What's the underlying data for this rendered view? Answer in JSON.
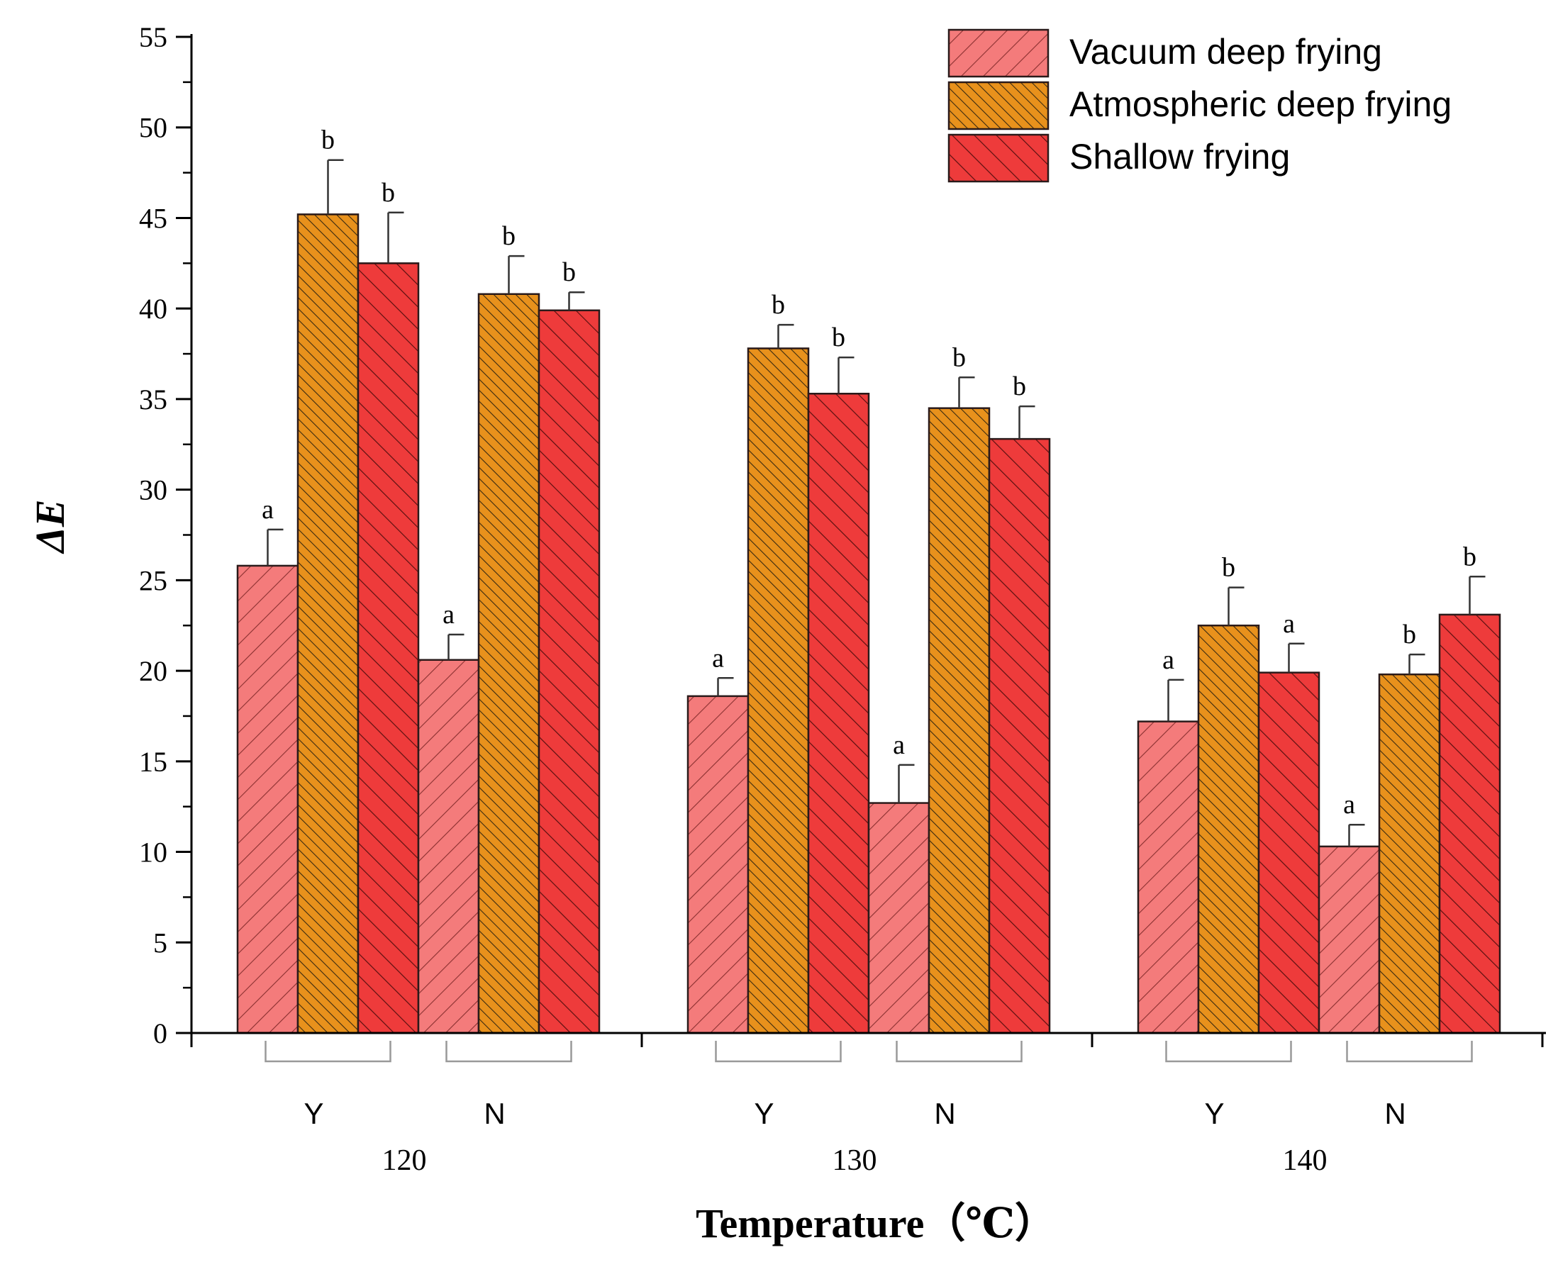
{
  "chart_data": {
    "type": "bar",
    "xlabel": "Temperature（℃）",
    "ylabel": "ΔE",
    "ylim": [
      0,
      55
    ],
    "yticks": [
      "0",
      "5",
      "10",
      "15",
      "20",
      "25",
      "30",
      "35",
      "40",
      "45",
      "50",
      "55"
    ],
    "legend_position": "top-right",
    "groups": [
      {
        "temperature": "120",
        "subgroups": [
          {
            "label": "Y",
            "bars": [
              {
                "series": "Vacuum deep frying",
                "value": 25.8,
                "error": 2.0,
                "letter": "a"
              },
              {
                "series": "Atmospheric deep frying",
                "value": 45.2,
                "error": 3.0,
                "letter": "b"
              },
              {
                "series": "Shallow frying",
                "value": 42.5,
                "error": 2.8,
                "letter": "b"
              }
            ]
          },
          {
            "label": "N",
            "bars": [
              {
                "series": "Vacuum deep frying",
                "value": 20.6,
                "error": 1.4,
                "letter": "a"
              },
              {
                "series": "Atmospheric deep frying",
                "value": 40.8,
                "error": 2.1,
                "letter": "b"
              },
              {
                "series": "Shallow frying",
                "value": 39.9,
                "error": 1.0,
                "letter": "b"
              }
            ]
          }
        ]
      },
      {
        "temperature": "130",
        "subgroups": [
          {
            "label": "Y",
            "bars": [
              {
                "series": "Vacuum deep frying",
                "value": 18.6,
                "error": 1.0,
                "letter": "a"
              },
              {
                "series": "Atmospheric deep frying",
                "value": 37.8,
                "error": 1.3,
                "letter": "b"
              },
              {
                "series": "Shallow frying",
                "value": 35.3,
                "error": 2.0,
                "letter": "b"
              }
            ]
          },
          {
            "label": "N",
            "bars": [
              {
                "series": "Vacuum deep frying",
                "value": 12.7,
                "error": 2.1,
                "letter": "a"
              },
              {
                "series": "Atmospheric deep frying",
                "value": 34.5,
                "error": 1.7,
                "letter": "b"
              },
              {
                "series": "Shallow frying",
                "value": 32.8,
                "error": 1.8,
                "letter": "b"
              }
            ]
          }
        ]
      },
      {
        "temperature": "140",
        "subgroups": [
          {
            "label": "Y",
            "bars": [
              {
                "series": "Vacuum deep frying",
                "value": 17.2,
                "error": 2.3,
                "letter": "a"
              },
              {
                "series": "Atmospheric deep frying",
                "value": 22.5,
                "error": 2.1,
                "letter": "b"
              },
              {
                "series": "Shallow frying",
                "value": 19.9,
                "error": 1.6,
                "letter": "a"
              }
            ]
          },
          {
            "label": "N",
            "bars": [
              {
                "series": "Vacuum deep frying",
                "value": 10.3,
                "error": 1.2,
                "letter": "a"
              },
              {
                "series": "Atmospheric deep frying",
                "value": 19.8,
                "error": 1.1,
                "letter": "b"
              },
              {
                "series": "Shallow frying",
                "value": 23.1,
                "error": 2.1,
                "letter": "b"
              }
            ]
          }
        ]
      }
    ],
    "series": [
      {
        "name": "Vacuum deep frying",
        "color": "#f47b7b",
        "pattern": "forward-hatch"
      },
      {
        "name": "Atmospheric deep frying",
        "color": "#e8911c",
        "pattern": "back-hatch-dense"
      },
      {
        "name": "Shallow frying",
        "color": "#ee3b3b",
        "pattern": "back-hatch"
      }
    ]
  }
}
